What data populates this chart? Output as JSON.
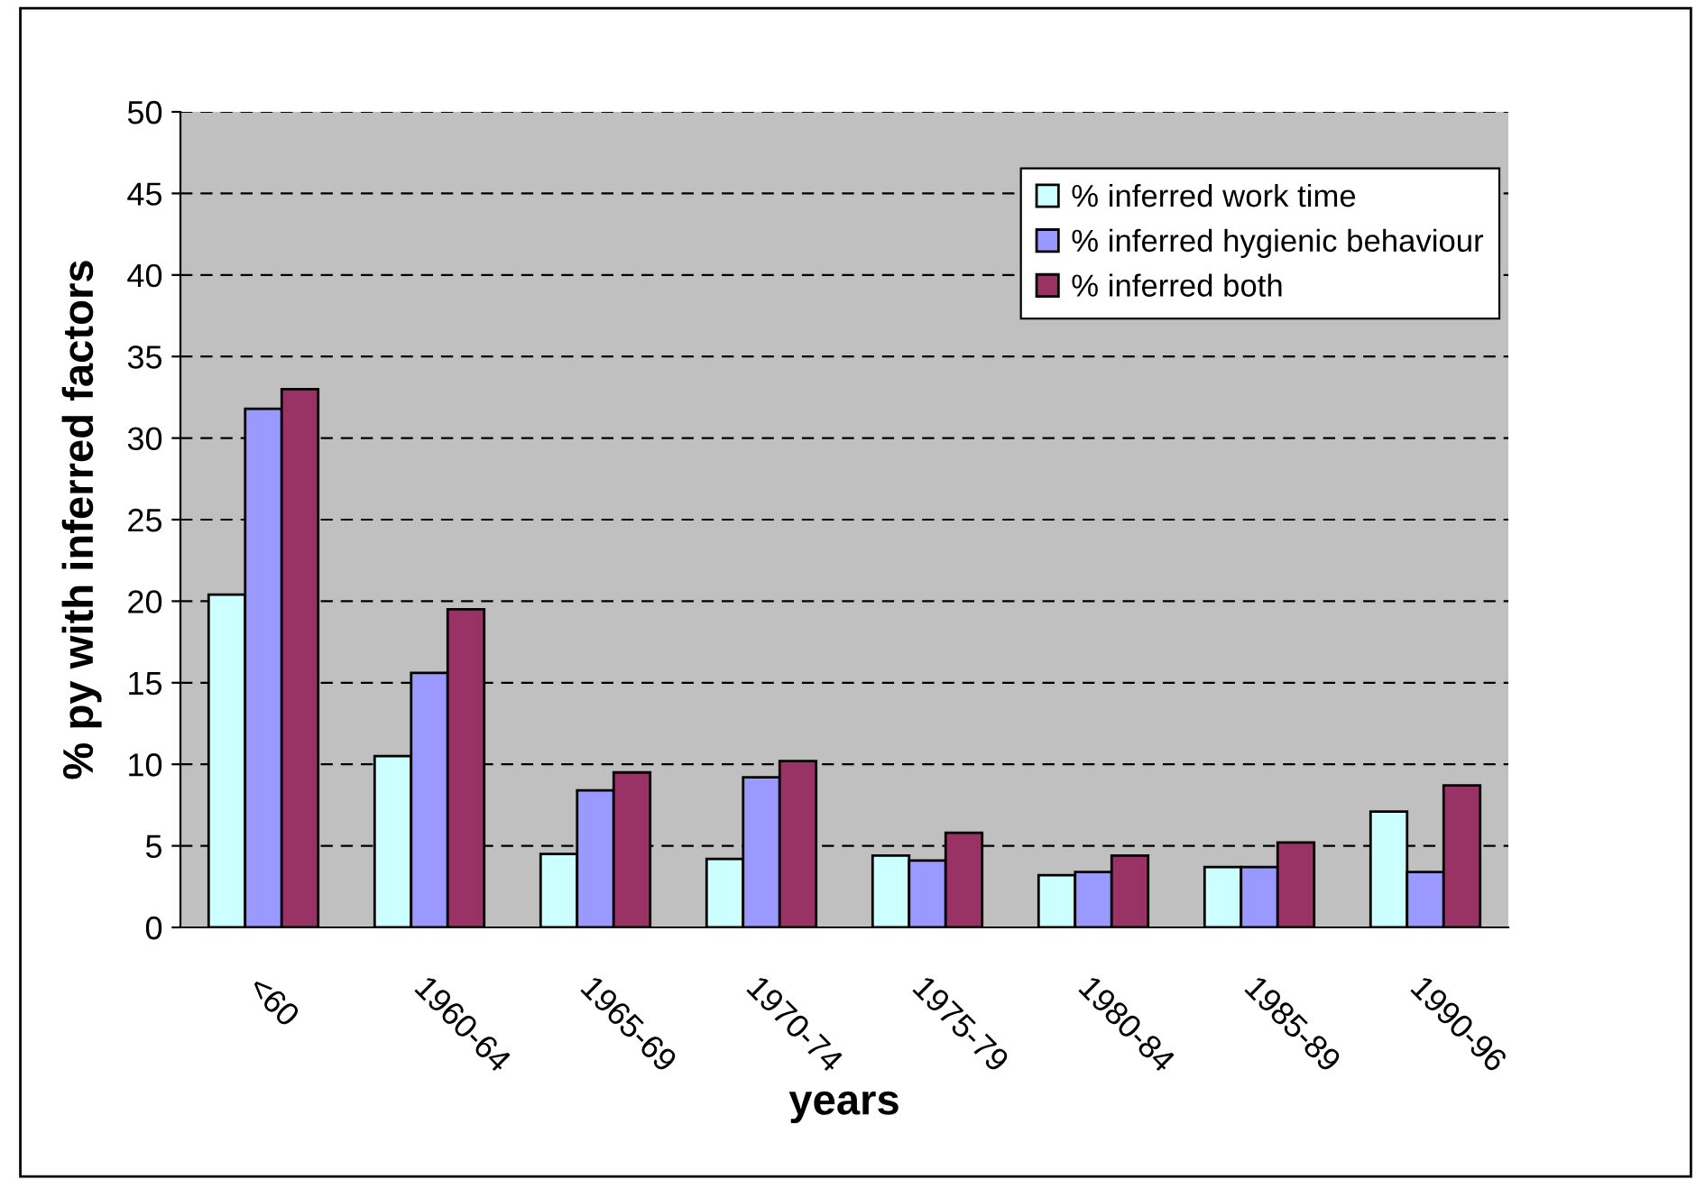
{
  "chart_data": {
    "type": "bar",
    "xlabel": "years",
    "ylabel": "% py with inferred factors",
    "categories": [
      "<60",
      "1960-64",
      "1965-69",
      "1970-74",
      "1975-79",
      "1980-84",
      "1985-89",
      "1990-96"
    ],
    "series": [
      {
        "name": "% inferred work time",
        "color": "#ccffff",
        "values": [
          20.4,
          10.5,
          4.5,
          4.2,
          4.4,
          3.2,
          3.7,
          7.1
        ]
      },
      {
        "name": "% inferred hygienic behaviour",
        "color": "#9999ff",
        "values": [
          31.8,
          15.6,
          8.4,
          9.2,
          4.1,
          3.4,
          3.7,
          3.4
        ]
      },
      {
        "name": "% inferred both",
        "color": "#993366",
        "values": [
          33.0,
          19.5,
          9.5,
          10.2,
          5.8,
          4.4,
          5.2,
          8.7
        ]
      }
    ],
    "ylim": [
      0,
      50
    ],
    "yticks": [
      0,
      5,
      10,
      15,
      20,
      25,
      30,
      35,
      40,
      45,
      50
    ],
    "grid": "y",
    "legend": "top right"
  }
}
